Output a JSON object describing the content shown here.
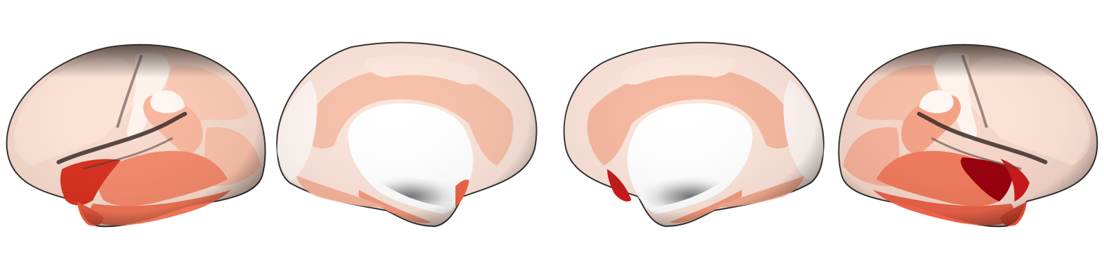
{
  "figure": {
    "background": "#ffffff",
    "colormap": [
      "#fff5f0",
      "#fee0d2",
      "#fcbba1",
      "#fc9272",
      "#fb6a4a",
      "#ef3b2c",
      "#cb181d",
      "#a50f15",
      "#67000d"
    ],
    "shading": "#2b2b2b",
    "views": [
      {
        "name": "left-lateral",
        "hemisphere": "left",
        "surface": "lateral",
        "peak": "#d7301f"
      },
      {
        "name": "left-medial",
        "hemisphere": "left",
        "surface": "medial",
        "peak": "#ef6548"
      },
      {
        "name": "right-medial",
        "hemisphere": "right",
        "surface": "medial",
        "peak": "#c51b1b"
      },
      {
        "name": "right-lateral",
        "hemisphere": "right",
        "surface": "lateral",
        "peak": "#99000d"
      }
    ]
  }
}
